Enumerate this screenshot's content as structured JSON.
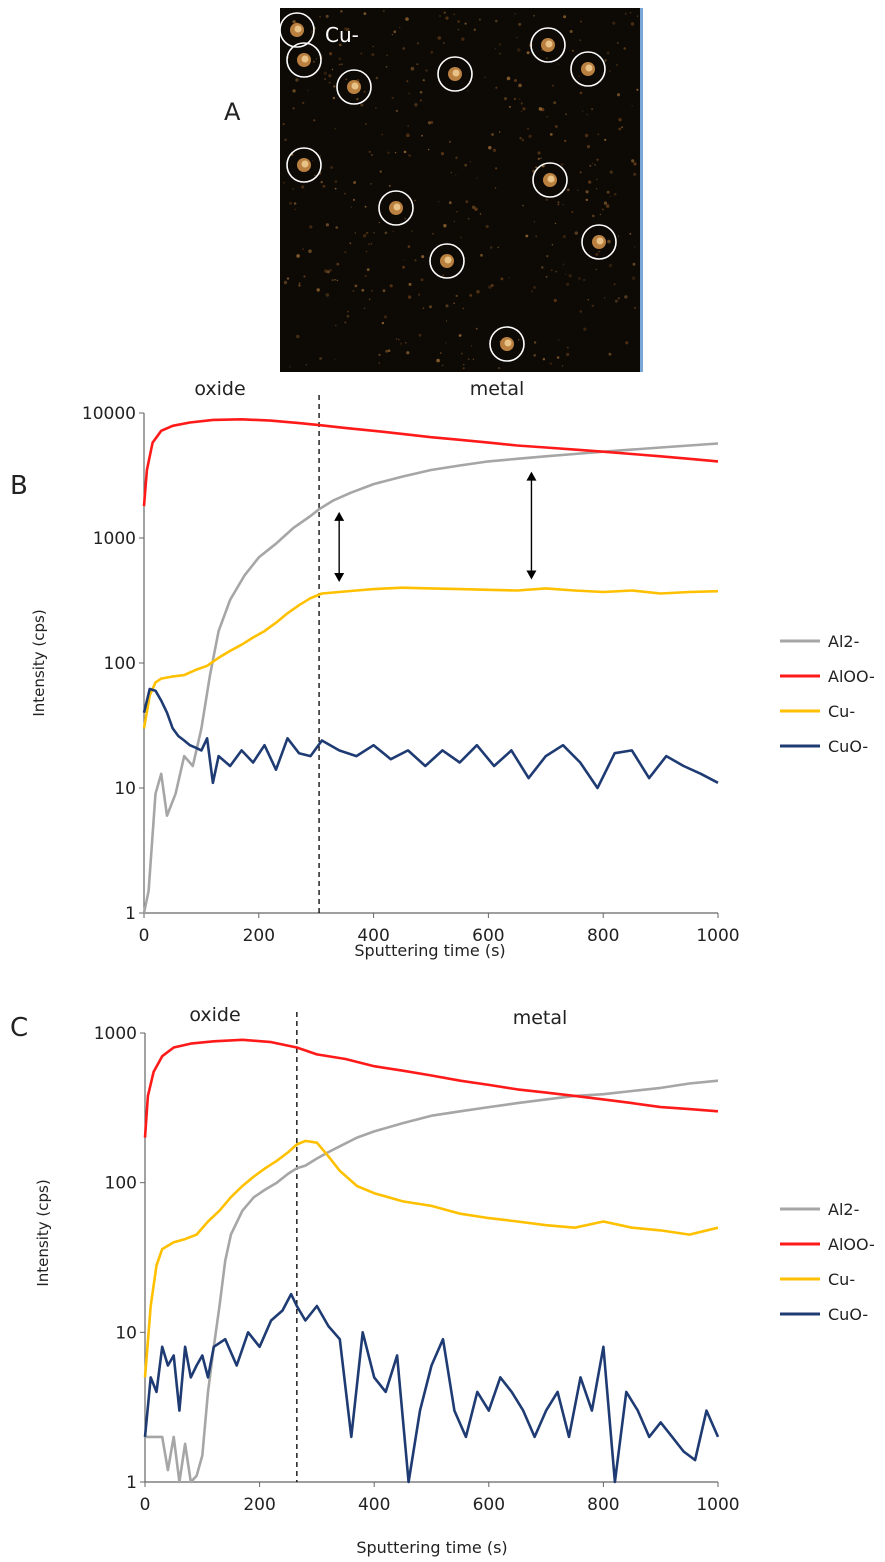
{
  "panel_a": {
    "label": "A",
    "ion_label": "Cu-"
  },
  "chart_data": [
    {
      "panel_label": "B",
      "type": "line",
      "xlabel": "Sputtering time (s)",
      "ylabel": "Intensity (cps)",
      "xlim": [
        0,
        1000
      ],
      "ylim": [
        1,
        10000
      ],
      "yscale": "log",
      "x_ticks": [
        0,
        200,
        400,
        600,
        800,
        1000
      ],
      "y_ticks": [
        1,
        10,
        100,
        1000,
        10000
      ],
      "grid": false,
      "legend_position": "right",
      "annotations": {
        "region_left": "oxide",
        "region_right": "metal",
        "boundary_x": 305,
        "arrows_at_x": [
          340,
          675
        ]
      },
      "series": [
        {
          "name": "Al2-",
          "color": "#a6a6a6",
          "x": [
            0,
            8,
            20,
            30,
            40,
            55,
            70,
            85,
            100,
            115,
            130,
            150,
            175,
            200,
            230,
            260,
            290,
            305,
            330,
            360,
            400,
            450,
            500,
            550,
            600,
            650,
            700,
            750,
            800,
            850,
            900,
            950,
            1000
          ],
          "y": [
            1,
            1.5,
            9,
            13,
            6,
            9,
            18,
            15,
            30,
            80,
            180,
            320,
            500,
            700,
            900,
            1200,
            1500,
            1700,
            2000,
            2300,
            2700,
            3100,
            3500,
            3800,
            4100,
            4300,
            4500,
            4700,
            4900,
            5100,
            5300,
            5500,
            5700
          ]
        },
        {
          "name": "AlOO-",
          "color": "#ff1a1a",
          "x": [
            0,
            5,
            15,
            30,
            50,
            80,
            120,
            170,
            220,
            270,
            305,
            350,
            400,
            450,
            500,
            550,
            600,
            650,
            700,
            750,
            800,
            850,
            900,
            950,
            1000
          ],
          "y": [
            1800,
            3500,
            5800,
            7200,
            7900,
            8400,
            8800,
            8900,
            8700,
            8300,
            8000,
            7600,
            7200,
            6800,
            6400,
            6100,
            5800,
            5500,
            5300,
            5100,
            4900,
            4700,
            4500,
            4300,
            4100
          ]
        },
        {
          "name": "Cu-",
          "color": "#ffc000",
          "x": [
            0,
            10,
            20,
            30,
            50,
            70,
            90,
            110,
            130,
            150,
            170,
            190,
            210,
            230,
            250,
            270,
            290,
            310,
            340,
            370,
            400,
            450,
            500,
            550,
            600,
            650,
            700,
            750,
            800,
            850,
            900,
            950,
            1000
          ],
          "y": [
            30,
            55,
            70,
            75,
            78,
            80,
            88,
            95,
            110,
            125,
            140,
            160,
            180,
            210,
            250,
            290,
            330,
            360,
            370,
            380,
            390,
            400,
            395,
            390,
            385,
            380,
            395,
            380,
            370,
            380,
            360,
            370,
            375
          ]
        },
        {
          "name": "CuO-",
          "color": "#1f3b73",
          "x": [
            0,
            10,
            20,
            30,
            40,
            50,
            60,
            70,
            80,
            90,
            100,
            110,
            120,
            130,
            150,
            170,
            190,
            210,
            230,
            250,
            270,
            290,
            310,
            340,
            370,
            400,
            430,
            460,
            490,
            520,
            550,
            580,
            610,
            640,
            670,
            700,
            730,
            760,
            790,
            820,
            850,
            880,
            910,
            940,
            970,
            1000
          ],
          "y": [
            40,
            62,
            60,
            50,
            40,
            30,
            26,
            24,
            22,
            21,
            20,
            25,
            11,
            18,
            15,
            20,
            16,
            22,
            14,
            25,
            19,
            18,
            24,
            20,
            18,
            22,
            17,
            20,
            15,
            20,
            16,
            22,
            15,
            20,
            12,
            18,
            22,
            16,
            10,
            19,
            20,
            12,
            18,
            15,
            13,
            11
          ]
        }
      ]
    },
    {
      "panel_label": "C",
      "type": "line",
      "xlabel": "Sputtering time (s)",
      "ylabel": "Intensity (cps)",
      "xlim": [
        0,
        1000
      ],
      "ylim": [
        1,
        1000
      ],
      "yscale": "log",
      "x_ticks": [
        0,
        200,
        400,
        600,
        800,
        1000
      ],
      "y_ticks": [
        1,
        10,
        100,
        1000
      ],
      "grid": false,
      "legend_position": "right",
      "annotations": {
        "region_left": "oxide",
        "region_right": "metal",
        "boundary_x": 265
      },
      "series": [
        {
          "name": "Al2-",
          "color": "#a6a6a6",
          "x": [
            0,
            10,
            20,
            30,
            40,
            50,
            60,
            70,
            80,
            90,
            100,
            110,
            120,
            130,
            140,
            150,
            170,
            190,
            210,
            230,
            250,
            265,
            280,
            300,
            320,
            340,
            370,
            400,
            450,
            500,
            550,
            600,
            650,
            700,
            750,
            800,
            850,
            900,
            950,
            1000
          ],
          "y": [
            2,
            2,
            2,
            2,
            1.2,
            2,
            1,
            1.8,
            1,
            1.1,
            1.5,
            4,
            8,
            15,
            30,
            45,
            65,
            80,
            90,
            100,
            115,
            125,
            130,
            145,
            160,
            175,
            200,
            220,
            250,
            280,
            300,
            320,
            340,
            360,
            380,
            390,
            410,
            430,
            460,
            480
          ]
        },
        {
          "name": "AlOO-",
          "color": "#ff1a1a",
          "x": [
            0,
            5,
            15,
            30,
            50,
            80,
            120,
            170,
            220,
            265,
            300,
            350,
            400,
            450,
            500,
            550,
            600,
            650,
            700,
            750,
            800,
            850,
            900,
            950,
            1000
          ],
          "y": [
            200,
            380,
            550,
            700,
            800,
            850,
            880,
            900,
            870,
            800,
            720,
            670,
            600,
            560,
            520,
            480,
            450,
            420,
            400,
            380,
            360,
            340,
            320,
            310,
            300
          ]
        },
        {
          "name": "Cu-",
          "color": "#ffc000",
          "x": [
            0,
            10,
            20,
            30,
            50,
            70,
            90,
            110,
            130,
            150,
            170,
            190,
            210,
            230,
            250,
            265,
            280,
            300,
            320,
            340,
            370,
            400,
            450,
            500,
            550,
            600,
            650,
            700,
            750,
            800,
            850,
            900,
            950,
            1000
          ],
          "y": [
            5,
            15,
            28,
            36,
            40,
            42,
            45,
            55,
            65,
            80,
            95,
            110,
            125,
            140,
            160,
            180,
            190,
            185,
            150,
            120,
            95,
            85,
            75,
            70,
            62,
            58,
            55,
            52,
            50,
            55,
            50,
            48,
            45,
            50
          ]
        },
        {
          "name": "CuO-",
          "color": "#1f3b73",
          "x": [
            0,
            10,
            20,
            30,
            40,
            50,
            60,
            70,
            80,
            90,
            100,
            110,
            120,
            140,
            160,
            180,
            200,
            220,
            240,
            255,
            265,
            280,
            300,
            320,
            340,
            360,
            380,
            400,
            420,
            440,
            460,
            480,
            500,
            520,
            540,
            560,
            580,
            600,
            620,
            640,
            660,
            680,
            700,
            720,
            740,
            760,
            780,
            800,
            820,
            840,
            860,
            880,
            900,
            920,
            940,
            960,
            980,
            1000
          ],
          "y": [
            2,
            5,
            4,
            8,
            6,
            7,
            3,
            8,
            5,
            6,
            7,
            5,
            8,
            9,
            6,
            10,
            8,
            12,
            14,
            18,
            15,
            12,
            15,
            11,
            9,
            2,
            10,
            5,
            4,
            7,
            1,
            3,
            6,
            9,
            3,
            2,
            4,
            3,
            5,
            4,
            3,
            2,
            3,
            4,
            2,
            5,
            3,
            8,
            1,
            4,
            3,
            2,
            2.5,
            2,
            1.6,
            1.4,
            3,
            2
          ]
        }
      ]
    }
  ]
}
